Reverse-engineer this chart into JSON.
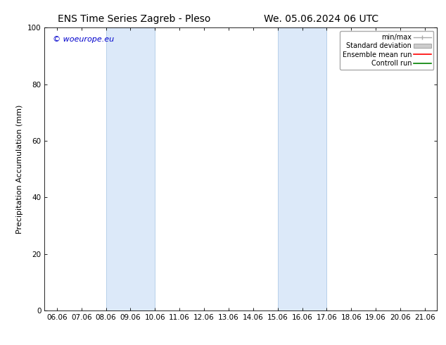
{
  "title_left": "ENS Time Series Zagreb - Pleso",
  "title_right": "We. 05.06.2024 06 UTC",
  "ylabel": "Precipitation Accumulation (mm)",
  "xlabel": "",
  "watermark": "© woeurope.eu",
  "watermark_color": "#0000cc",
  "ylim": [
    0,
    100
  ],
  "xlim_start": 5.5,
  "xlim_end": 21.5,
  "xtick_labels": [
    "06.06",
    "07.06",
    "08.06",
    "09.06",
    "10.06",
    "11.06",
    "12.06",
    "13.06",
    "14.06",
    "15.06",
    "16.06",
    "17.06",
    "18.06",
    "19.06",
    "20.06",
    "21.06"
  ],
  "xtick_positions": [
    6,
    7,
    8,
    9,
    10,
    11,
    12,
    13,
    14,
    15,
    16,
    17,
    18,
    19,
    20,
    21
  ],
  "ytick_positions": [
    0,
    20,
    40,
    60,
    80,
    100
  ],
  "shaded_bands": [
    {
      "x_start": 8.0,
      "x_end": 10.0
    },
    {
      "x_start": 15.0,
      "x_end": 17.0
    }
  ],
  "shaded_color": "#dce9f9",
  "shaded_edge_color": "#b8d0ea",
  "background_color": "#ffffff",
  "legend_items": [
    {
      "label": "min/max",
      "color": "#aaaaaa",
      "style": "line_with_caps"
    },
    {
      "label": "Standard deviation",
      "color": "#cccccc",
      "style": "rect"
    },
    {
      "label": "Ensemble mean run",
      "color": "#ff0000",
      "style": "line"
    },
    {
      "label": "Controll run",
      "color": "#008000",
      "style": "line"
    }
  ],
  "title_fontsize": 10,
  "axis_fontsize": 8,
  "tick_fontsize": 7.5,
  "watermark_fontsize": 8,
  "legend_fontsize": 7
}
